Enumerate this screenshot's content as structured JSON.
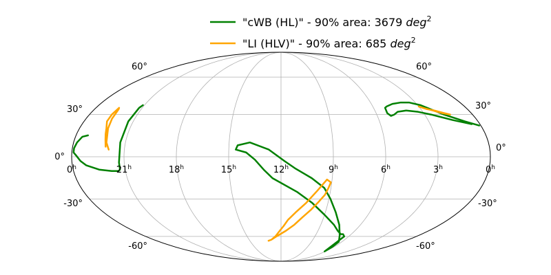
{
  "chart_data": {
    "type": "line",
    "projection": "mollweide",
    "grid": true,
    "legend_position": "top-right",
    "title": "",
    "xlabel": "",
    "ylabel": "",
    "xlim": [
      24,
      0
    ],
    "ylim": [
      -90,
      90
    ],
    "x_unit": "hours (right ascension)",
    "y_unit": "degrees (declination)",
    "x_ticks": [
      {
        "value": 24,
        "label": "0",
        "sup": "h"
      },
      {
        "value": 21,
        "label": "21",
        "sup": "h"
      },
      {
        "value": 18,
        "label": "18",
        "sup": "h"
      },
      {
        "value": 15,
        "label": "15",
        "sup": "h"
      },
      {
        "value": 12,
        "label": "12",
        "sup": "h"
      },
      {
        "value": 9,
        "label": "9",
        "sup": "h"
      },
      {
        "value": 6,
        "label": "6",
        "sup": "h"
      },
      {
        "value": 3,
        "label": "3",
        "sup": "h"
      },
      {
        "value": 0,
        "label": "0",
        "sup": "h"
      }
    ],
    "y_ticks": [
      {
        "value": 60,
        "label": "60°"
      },
      {
        "value": 30,
        "label": "30°"
      },
      {
        "value": 0,
        "label": "0°"
      },
      {
        "value": -30,
        "label": "-30°"
      },
      {
        "value": -60,
        "label": "-60°"
      }
    ],
    "series": [
      {
        "name": "\"cWB (HL)\" - 90% area: 3679 ",
        "name_suffix": "deg",
        "name_sup": "2",
        "color": "#008000",
        "x": [
          23.3,
          23.6,
          23.8,
          23.9,
          23.9,
          23.75,
          23.5,
          23.2,
          22.5,
          21.8,
          21.4,
          21.3,
          21.3,
          21.3,
          21.3,
          21.2,
          21.1
        ],
        "y": [
          15,
          14,
          10,
          6,
          3,
          1,
          -3,
          -6,
          -9,
          -10,
          -10,
          -9,
          -4,
          10,
          25,
          35,
          37
        ]
      },
      {
        "name": "",
        "color": "#008000",
        "x": [
          0.1,
          0.8,
          1.8,
          2.8,
          3.4,
          4.0,
          4.6,
          5.1,
          5.25,
          5.3,
          5.15,
          4.9,
          4.6,
          4.0,
          3.3,
          2.6,
          1.5,
          0.5
        ],
        "y": [
          22,
          25,
          30,
          37,
          39,
          39,
          38,
          36,
          35,
          31,
          29,
          30,
          32,
          33,
          32,
          30,
          26,
          23
        ]
      },
      {
        "name": "",
        "color": "#008000",
        "x": [
          6.4,
          6.7,
          6.9,
          7.4,
          8.0,
          9.0,
          10.0,
          11.0,
          12.5,
          13.0,
          13.5,
          14.0,
          14.6,
          14.5,
          13.8,
          12.7,
          11.8,
          11.2,
          10.2,
          9.4,
          8.9,
          8.3,
          7.6,
          6.9,
          6.3,
          6.2,
          6.1,
          6.4
        ],
        "y": [
          -60,
          -58,
          -58,
          -55,
          -50,
          -42,
          -33,
          -25,
          -15,
          -9,
          -2,
          3,
          5,
          8,
          10,
          5,
          -3,
          -8,
          -15,
          -22,
          -30,
          -40,
          -50,
          -59,
          -65,
          -70,
          -75,
          -60
        ]
      },
      {
        "name": "\"LI (HLV)\" - 90% area: 685 ",
        "name_suffix": "deg",
        "name_sup": "2",
        "color": "#ffa500",
        "x": [
          22.1,
          22.2,
          22.3,
          22.4,
          22.6,
          22.6,
          22.5,
          22.45,
          22.4,
          22.3,
          22.1,
          21.9
        ],
        "y": [
          7,
          12,
          16,
          20,
          25,
          30,
          35,
          34,
          27,
          20,
          10,
          5
        ]
      },
      {
        "name": "",
        "color": "#ffa500",
        "x": [
          1.4,
          1.8,
          2.3,
          2.8,
          3.0,
          2.6,
          2.2,
          1.7,
          1.4
        ],
        "y": [
          30,
          31,
          33,
          35,
          36,
          34,
          33,
          31,
          30
        ]
      },
      {
        "name": "",
        "color": "#ffa500",
        "x": [
          13.2,
          12.9,
          12.4,
          11.6,
          11.0,
          10.5,
          10.0,
          9.6,
          9.3,
          9.15,
          9.05,
          9.3,
          9.8,
          10.4,
          11.0,
          11.5,
          11.8,
          12.1,
          12.5,
          12.9,
          13.2
        ],
        "y": [
          -64,
          -63,
          -60,
          -55,
          -50,
          -44,
          -38,
          -32,
          -27,
          -22,
          -18,
          -16,
          -24,
          -33,
          -40,
          -46,
          -51,
          -55,
          -60,
          -63,
          -64
        ]
      }
    ]
  }
}
